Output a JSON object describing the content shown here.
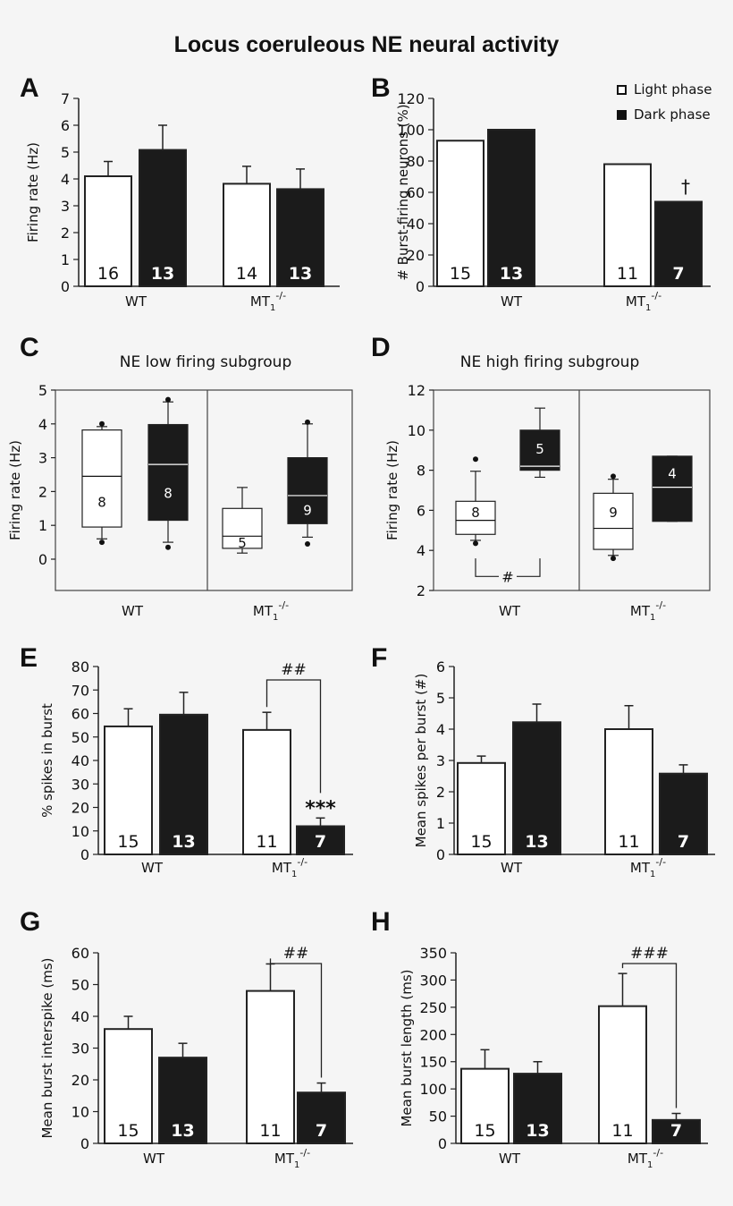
{
  "title": "Locus coeruleous NE neural activity",
  "legend": {
    "light": "Light phase",
    "dark": "Dark phase"
  },
  "colors": {
    "light": "#ffffff",
    "dark": "#1b1b1b",
    "axis": "#222222"
  },
  "group_labels": {
    "wt": "WT",
    "mt_base": "MT",
    "mt_sub": "1",
    "mt_sup": "-/-"
  },
  "chart_data": [
    {
      "panel": "A",
      "type": "bar",
      "ylabel": "Firing rate (Hz)",
      "ylim": [
        0,
        7
      ],
      "yticks": [
        "0",
        "1",
        "2",
        "3",
        "4",
        "5",
        "6",
        "7"
      ],
      "categories": [
        "WT",
        "MT1-/-"
      ],
      "series": [
        {
          "name": "Light phase",
          "values": [
            4.1,
            3.82
          ],
          "errors": [
            0.55,
            0.65
          ],
          "n": [
            "16",
            "14"
          ]
        },
        {
          "name": "Dark phase",
          "values": [
            5.08,
            3.62
          ],
          "errors": [
            0.92,
            0.75
          ],
          "n": [
            "13",
            "13"
          ]
        }
      ],
      "annotations": []
    },
    {
      "panel": "B",
      "type": "bar",
      "ylabel": "# Burst-firing neurons (%)",
      "ylim": [
        0,
        120
      ],
      "yticks": [
        "0",
        "20",
        "40",
        "60",
        "80",
        "100",
        "120"
      ],
      "categories": [
        "WT",
        "MT1-/-"
      ],
      "series": [
        {
          "name": "Light phase",
          "values": [
            93,
            78
          ],
          "n": [
            "15",
            "11"
          ]
        },
        {
          "name": "Dark phase",
          "values": [
            100,
            54
          ],
          "n": [
            "13",
            "7"
          ]
        }
      ],
      "annotations": [
        "†"
      ]
    },
    {
      "panel": "C",
      "type": "box",
      "subtitle": "NE low firing subgroup",
      "ylabel": "Firing rate (Hz)",
      "ylim": [
        -0.3,
        5
      ],
      "yticks": [
        "0",
        "1",
        "2",
        "3",
        "4",
        "5"
      ],
      "categories": [
        "WT",
        "MT1-/-"
      ],
      "boxes": [
        {
          "group": "WT",
          "phase": "light",
          "whisker_low": 0.6,
          "q1": 0.95,
          "median": 2.45,
          "q3": 3.82,
          "whisker_high": 3.92,
          "outliers": [
            0.5,
            4.0
          ],
          "n": "8"
        },
        {
          "group": "WT",
          "phase": "dark",
          "whisker_low": 0.5,
          "q1": 1.15,
          "median": 2.8,
          "q3": 3.98,
          "whisker_high": 4.65,
          "outliers": [
            0.35,
            4.72
          ],
          "n": "8"
        },
        {
          "group": "MT1-/-",
          "phase": "light",
          "whisker_low": 0.18,
          "q1": 0.32,
          "median": 0.68,
          "q3": 1.5,
          "whisker_high": 2.12,
          "outliers": [],
          "n": "5"
        },
        {
          "group": "MT1-/-",
          "phase": "dark",
          "whisker_low": 0.65,
          "q1": 1.05,
          "median": 1.88,
          "q3": 3.0,
          "whisker_high": 4.0,
          "outliers": [
            0.45,
            4.05
          ],
          "n": "9"
        }
      ],
      "annotations": []
    },
    {
      "panel": "D",
      "type": "box",
      "subtitle": "NE high firing subgroup",
      "ylabel": "Firing rate (Hz)",
      "ylim": [
        2,
        12
      ],
      "yticks": [
        "2",
        "4",
        "6",
        "8",
        "10",
        "12"
      ],
      "categories": [
        "WT",
        "MT1-/-"
      ],
      "boxes": [
        {
          "group": "WT",
          "phase": "light",
          "whisker_low": 4.5,
          "q1": 4.8,
          "median": 5.5,
          "q3": 6.45,
          "whisker_high": 7.95,
          "outliers": [
            4.35,
            8.55
          ],
          "n": "8"
        },
        {
          "group": "WT",
          "phase": "dark",
          "whisker_low": 7.65,
          "q1": 8.0,
          "median": 8.2,
          "q3": 10.0,
          "whisker_high": 11.1,
          "outliers": [],
          "n": "5"
        },
        {
          "group": "MT1-/-",
          "phase": "light",
          "whisker_low": 3.75,
          "q1": 4.05,
          "median": 5.1,
          "q3": 6.85,
          "whisker_high": 7.55,
          "outliers": [
            3.6,
            7.7
          ],
          "n": "9"
        },
        {
          "group": "MT1-/-",
          "phase": "dark",
          "whisker_low": 5.45,
          "q1": 5.45,
          "median": 7.15,
          "q3": 8.7,
          "whisker_high": 8.7,
          "outliers": [],
          "n": "4"
        }
      ],
      "annotations": [
        "#"
      ]
    },
    {
      "panel": "E",
      "type": "bar",
      "ylabel": "% spikes in burst",
      "ylim": [
        0,
        80
      ],
      "yticks": [
        "0",
        "10",
        "20",
        "30",
        "40",
        "50",
        "60",
        "70",
        "80"
      ],
      "categories": [
        "WT",
        "MT1-/-"
      ],
      "series": [
        {
          "name": "Light phase",
          "values": [
            54.5,
            53
          ],
          "errors": [
            7.5,
            7.5
          ],
          "n": [
            "15",
            "11"
          ]
        },
        {
          "name": "Dark phase",
          "values": [
            59.5,
            12
          ],
          "errors": [
            9.5,
            3.5
          ],
          "n": [
            "13",
            "7"
          ]
        }
      ],
      "annotations": [
        "##",
        "***"
      ]
    },
    {
      "panel": "F",
      "type": "bar",
      "ylabel": "Mean spikes per burst (#)",
      "ylim": [
        0,
        6
      ],
      "yticks": [
        "0",
        "1",
        "2",
        "3",
        "4",
        "5",
        "6"
      ],
      "categories": [
        "WT",
        "MT1-/-"
      ],
      "series": [
        {
          "name": "Light phase",
          "values": [
            2.92,
            4.0
          ],
          "errors": [
            0.22,
            0.75
          ],
          "n": [
            "15",
            "11"
          ]
        },
        {
          "name": "Dark phase",
          "values": [
            4.22,
            2.58
          ],
          "errors": [
            0.58,
            0.28
          ],
          "n": [
            "13",
            "7"
          ]
        }
      ],
      "annotations": []
    },
    {
      "panel": "G",
      "type": "bar",
      "ylabel": "Mean burst interspike (ms)",
      "ylim": [
        0,
        60
      ],
      "yticks": [
        "0",
        "10",
        "20",
        "30",
        "40",
        "50",
        "60"
      ],
      "categories": [
        "WT",
        "MT1-/-"
      ],
      "series": [
        {
          "name": "Light phase",
          "values": [
            36,
            48
          ],
          "errors": [
            4,
            8.5
          ],
          "n": [
            "15",
            "11"
          ]
        },
        {
          "name": "Dark phase",
          "values": [
            27,
            16
          ],
          "errors": [
            4.5,
            3
          ],
          "n": [
            "13",
            "7"
          ]
        }
      ],
      "annotations": [
        "##"
      ]
    },
    {
      "panel": "H",
      "type": "bar",
      "ylabel": "Mean burst length (ms)",
      "ylim": [
        0,
        350
      ],
      "yticks": [
        "0",
        "50",
        "100",
        "150",
        "200",
        "250",
        "300",
        "350"
      ],
      "categories": [
        "WT",
        "MT1-/-"
      ],
      "series": [
        {
          "name": "Light phase",
          "values": [
            137,
            252
          ],
          "errors": [
            35,
            60
          ],
          "n": [
            "15",
            "11"
          ]
        },
        {
          "name": "Dark phase",
          "values": [
            128,
            43
          ],
          "errors": [
            22,
            12
          ],
          "n": [
            "13",
            "7"
          ]
        }
      ],
      "annotations": [
        "###"
      ]
    }
  ]
}
